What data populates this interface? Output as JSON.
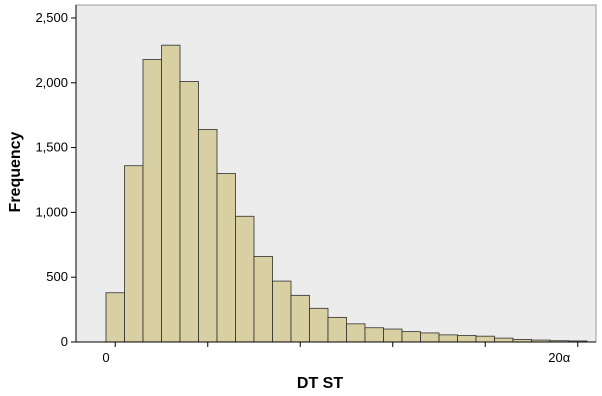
{
  "chart_data": {
    "type": "bar",
    "title": "",
    "xlabel": "DT ST",
    "ylabel": "Frequency",
    "ylim": [
      0,
      2600
    ],
    "y_ticks": [
      0,
      500,
      1000,
      1500,
      2000,
      2500
    ],
    "y_tick_labels": [
      "0",
      "500",
      "1,000",
      "1,500",
      "2,000",
      "2,500"
    ],
    "x_tick_labels": [
      {
        "bin": 0,
        "label": "0"
      },
      {
        "bin": 24,
        "label": "20α"
      }
    ],
    "values": [
      380,
      1360,
      2180,
      2290,
      2010,
      1640,
      1300,
      970,
      660,
      470,
      360,
      260,
      190,
      140,
      110,
      100,
      80,
      70,
      55,
      50,
      45,
      30,
      20,
      15,
      10,
      8
    ],
    "grid": false,
    "legend": "none",
    "colors": {
      "bar_fill": "#d8d0a2",
      "bar_stroke": "#2f2f2f",
      "plot_background": "#ececec",
      "axis": "#000000"
    }
  }
}
